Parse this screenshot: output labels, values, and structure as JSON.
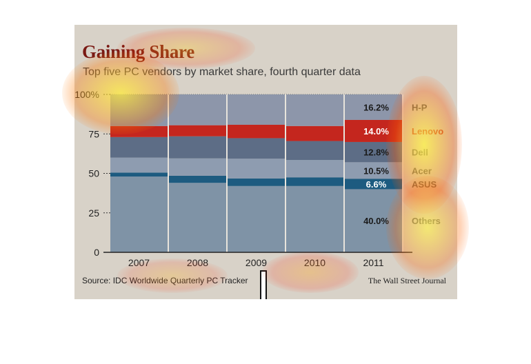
{
  "chart_data": {
    "type": "bar",
    "stacked": true,
    "title": "Gaining Share",
    "subtitle": "Top five PC vendors by market share, fourth quarter data",
    "categories": [
      "2007",
      "2008",
      "2009",
      "2010",
      "2011"
    ],
    "ylim": [
      0,
      100
    ],
    "yticks": [
      "100%",
      "75",
      "50",
      "25",
      "0"
    ],
    "ytick_values": [
      100,
      75,
      50,
      25,
      0
    ],
    "series": [
      {
        "name": "Others",
        "color": "#7f93a6",
        "values": [
          48,
          44,
          42,
          42,
          40.0
        ]
      },
      {
        "name": "ASUS",
        "color": "#1d5b80",
        "values": [
          2.5,
          4.5,
          4.8,
          5.5,
          6.6
        ]
      },
      {
        "name": "Acer",
        "color": "#8e9cb0",
        "values": [
          9.5,
          11,
          12.5,
          11,
          10.5
        ]
      },
      {
        "name": "Dell",
        "color": "#5d6d86",
        "values": [
          13,
          14,
          13,
          12,
          12.8
        ]
      },
      {
        "name": "Lenovo",
        "color": "#c4261e",
        "values": [
          7,
          7,
          8.5,
          9.5,
          14.0
        ]
      },
      {
        "name": "H-P",
        "color": "#8d96aa",
        "values": [
          20,
          19.5,
          19.2,
          20,
          16.2
        ]
      }
    ],
    "last_year_labels": [
      "40.0%",
      "6.6%",
      "10.5%",
      "12.8%",
      "14.0%",
      "16.2%"
    ],
    "legend": [
      "H-P",
      "Lenovo",
      "Dell",
      "Acer",
      "ASUS",
      "Others"
    ],
    "source": "Source: IDC Worldwide Quarterly PC Tracker",
    "credit": "The Wall Street Journal"
  },
  "colors": {
    "panel_bg": "#d8d2c8",
    "title": "#7a1a14",
    "highlight_column_bg": "#3e4a5c"
  }
}
